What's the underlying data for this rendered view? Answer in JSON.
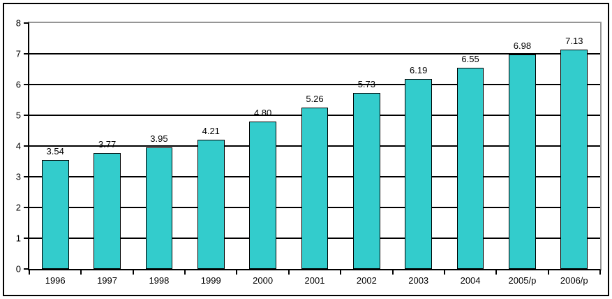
{
  "chart_data": {
    "type": "bar",
    "title": "",
    "xlabel": "",
    "ylabel": "",
    "categories": [
      "1996",
      "1997",
      "1998",
      "1999",
      "2000",
      "2001",
      "2002",
      "2003",
      "2004",
      "2005/p",
      "2006/p"
    ],
    "values": [
      3.54,
      3.77,
      3.95,
      4.21,
      4.8,
      5.26,
      5.73,
      6.19,
      6.55,
      6.98,
      7.13
    ],
    "value_labels": [
      "3.54",
      "3.77",
      "3.95",
      "4.21",
      "4.80",
      "5.26",
      "5.73",
      "6.19",
      "6.55",
      "6.98",
      "7.13"
    ],
    "ylim": [
      0,
      8
    ],
    "y_tick_step": 1,
    "y_tick_labels": [
      "0",
      "1",
      "2",
      "3",
      "4",
      "5",
      "6",
      "7",
      "8"
    ],
    "grid": true,
    "legend": false,
    "colors": {
      "bar_fill": "#33CCCC",
      "bar_border": "#000000",
      "gridline": "#000000",
      "axis": "#000000",
      "plot_border": "#969696",
      "chart_border": "#000000",
      "background": "#FFFFFF",
      "text": "#000000"
    }
  }
}
